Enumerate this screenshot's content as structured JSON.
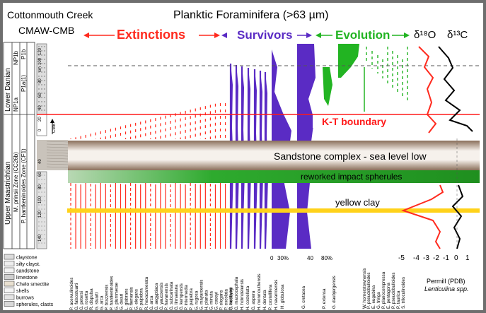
{
  "header": {
    "site": "Cottonmouth Creek",
    "core": "CMAW-CMB",
    "title": "Planktic Foraminifera (>63 µm)",
    "extinctions": "Extinctions",
    "survivors": "Survivors",
    "evolution": "Evolution",
    "isotope_o": "δ¹⁸O",
    "isotope_c": "δ¹³C"
  },
  "stages": {
    "lower_danian": "Lower Danian",
    "upper_maastrichtian": "Upper Maastrichtian"
  },
  "zones": {
    "np1b": "NP1b",
    "np1a": "NP1a",
    "p1b": "P1b",
    "p1a": "P1a(1)",
    "nannofossil": "M. prinsii Zone (CC26b)",
    "foram": "P. hantkeninoides Zone (CF1)",
    "cmb": "CMB"
  },
  "depth_ticks": [
    "120",
    "100",
    "cm",
    "80",
    "60",
    "40",
    "20",
    "0",
    "40",
    "60",
    "80",
    "100",
    "120",
    "140"
  ],
  "annotations": {
    "kt": "K-T boundary",
    "sandstone": "Sandstone complex - sea level low",
    "spherules": "reworked impact spherules",
    "clay": "yellow clay"
  },
  "legend": [
    "claystone",
    "silty clayst.",
    "sandstone",
    "limestone",
    "Chelo smectite",
    "shells",
    "burrows",
    "spherules, clasts"
  ],
  "species_extinct": [
    "P. acervulinoides",
    "G. falsostuarti",
    "G. petersi",
    "G. rosetta",
    "R. dispulsa",
    "G. stuarti",
    "G. arca",
    "P. brazzensis",
    "P. hantkeninoides",
    "G. plummerae",
    "G. dwari",
    "L. glabrans",
    "P. flemensis",
    "G. elegans",
    "P. palpebra",
    "R. hexacamerata",
    "G. arca",
    "G. aegyptiaca",
    "G. yaucoensis",
    "P. havanensis",
    "G. subcarinata",
    "G. linnaeiana",
    "G. kempensis",
    "P. intermedia",
    "P. palpebra",
    "G. rugosa",
    "G. mayaroensis",
    "H. planata",
    "G. minuta",
    "G. caseyi",
    "P. elegans",
    "P. excolata",
    "G. hedbergi"
  ],
  "species_survivors": [
    "P. carseyae",
    "G. macrocephala",
    "H. holmdelensis",
    "H. costellata",
    "G. aspera",
    "H. monmouthensis",
    "H. dentata",
    "P. costellifera",
    "H. navarroensis"
  ],
  "species_right": [
    "H. globulosa",
    "G. cretacea",
    "P. extensa",
    "G. daubjergensis",
    "W. hornerstownensis",
    "P. pseudobulloides",
    "E. eugubina",
    "G. fringa",
    "P. planocompressa",
    "E. pentagona",
    "P. pseudobulloides",
    "P. taurica",
    "S. triloculinoides"
  ],
  "survivor_axis": {
    "a": "0",
    "b": "30%",
    "c": "40",
    "d": "80%"
  },
  "isotope_axis": [
    "-5",
    "-4",
    "-3",
    "-2",
    "-1",
    "0",
    "1"
  ],
  "isotope_footer": {
    "units": "Permill (PDB)",
    "genus": "Lenticulina spp."
  },
  "colors": {
    "extinct": "#ff2a1e",
    "survivor": "#5a2bc4",
    "evolution": "#22b422",
    "kt_line": "#ff1a1a",
    "clay": "#ffd21a",
    "spherule_band": "#2ea82e",
    "o18": "#ff2a1e",
    "c13": "#000000"
  }
}
